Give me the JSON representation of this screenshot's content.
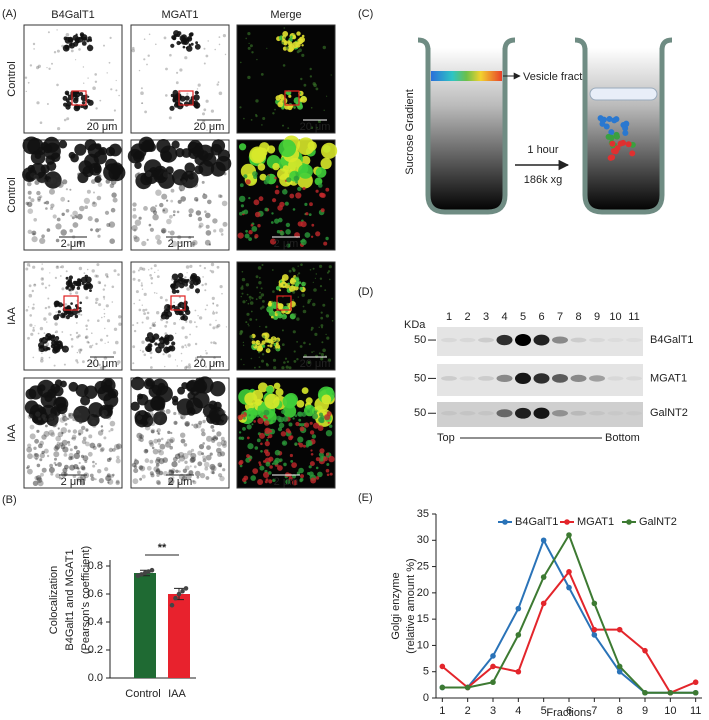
{
  "panel_labels": [
    "(A)",
    "(B)",
    "(C)",
    "(D)",
    "(E)"
  ],
  "panel_a": {
    "columns": [
      "B4GalT1",
      "MGAT1",
      "Merge"
    ],
    "rows": [
      "Control",
      "Control",
      "IAA",
      "IAA"
    ],
    "scale_bars": [
      "20 μm",
      "2 μm",
      "20 μm",
      "2 μm"
    ]
  },
  "panel_c": {
    "y_label": "Sucrose Gradient",
    "fraction_label": "Vesicle fraction",
    "time": "1 hour",
    "speed": "186k xg"
  },
  "panel_d": {
    "lanes": [
      "1",
      "2",
      "3",
      "4",
      "5",
      "6",
      "7",
      "8",
      "9",
      "10",
      "11"
    ],
    "unit": "KDa",
    "markers": [
      "50",
      "50",
      "50"
    ],
    "bands": [
      "B4GalT1",
      "MGAT1",
      "GalNT2"
    ],
    "top": "Top",
    "bottom": "Bottom"
  },
  "chart_data": [
    {
      "type": "bar",
      "y_label": [
        "Colocalization",
        "B4Galt1 and MGAT1",
        "(Pearson's coefficient)"
      ],
      "categories": [
        "Control",
        "IAA"
      ],
      "values": [
        0.75,
        0.6
      ],
      "errors": [
        0.02,
        0.04
      ],
      "points": [
        [
          0.73,
          0.74,
          0.75,
          0.76,
          0.77
        ],
        [
          0.52,
          0.57,
          0.6,
          0.62,
          0.64
        ]
      ],
      "colors": [
        "#1f6a33",
        "#e8222d"
      ],
      "significance": "**",
      "ylim": [
        0,
        0.8
      ],
      "yticks": [
        {
          "value": 0,
          "label": "0.0"
        },
        0.2,
        0.4,
        0.6,
        0.8
      ]
    },
    {
      "type": "line",
      "x_label": "Fractions",
      "y_label": [
        "Golgi enzyme",
        "(relative amount %)"
      ],
      "x": [
        1,
        2,
        3,
        4,
        5,
        6,
        7,
        8,
        9,
        10,
        11
      ],
      "series": [
        {
          "name": "B4GalT1",
          "color": "#2a73b8",
          "values": [
            2,
            2,
            8,
            17,
            30,
            21,
            12,
            5,
            1,
            1,
            1
          ]
        },
        {
          "name": "MGAT1",
          "color": "#e3252b",
          "values": [
            6,
            2,
            6,
            5,
            18,
            24,
            13,
            13,
            9,
            1,
            3
          ]
        },
        {
          "name": "GalNT2",
          "color": "#3d7a32",
          "values": [
            2,
            2,
            3,
            12,
            23,
            31,
            18,
            6,
            1,
            1,
            1
          ]
        }
      ],
      "xlim": [
        0.75,
        11.25
      ],
      "ylim": [
        0,
        35
      ],
      "xticks": [
        1,
        2,
        3,
        4,
        5,
        6,
        7,
        8,
        9,
        10,
        11
      ],
      "yticks": [
        0,
        5,
        10,
        15,
        20,
        25,
        30,
        35
      ],
      "legend": "top"
    }
  ]
}
